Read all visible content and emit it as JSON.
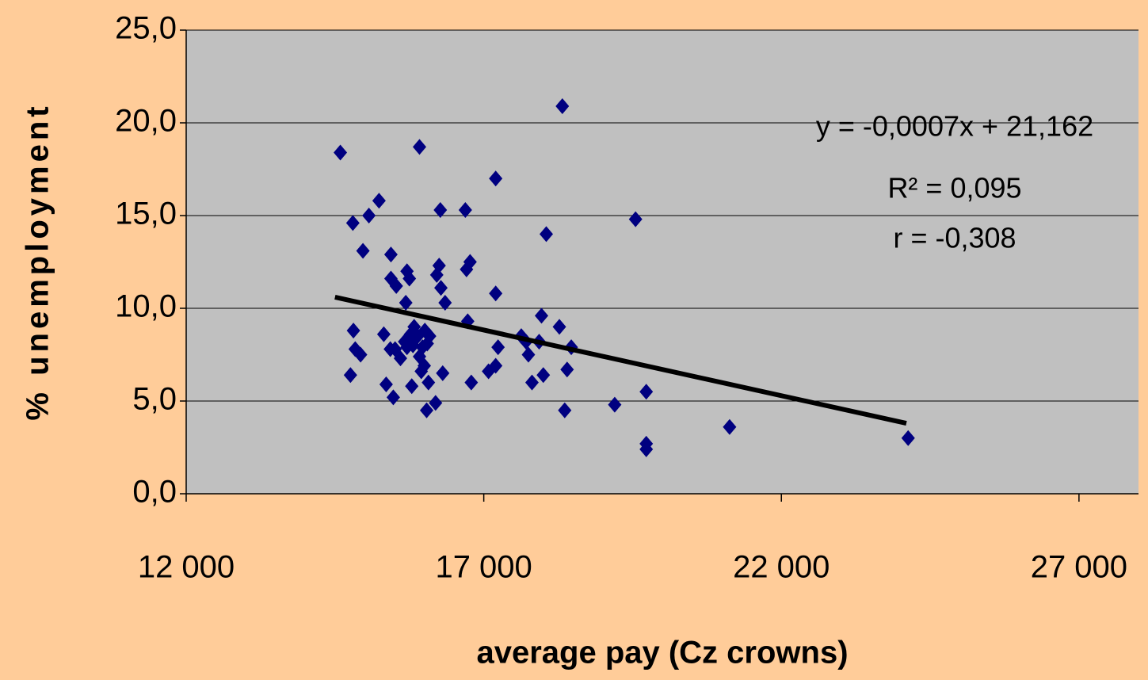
{
  "chart_data": {
    "type": "scatter",
    "xlabel": "average pay (Cz crowns)",
    "ylabel": "% unemployment",
    "background": "#ffcc99",
    "plot_background": "#c0c0c0",
    "grid": true,
    "series": [
      {
        "color": "#000080",
        "x": [
          14590,
          14800,
          15070,
          15240,
          14970,
          14810,
          14840,
          14930,
          14760,
          15320,
          15440,
          15440,
          15530,
          15710,
          15750,
          15690,
          15920,
          16270,
          16250,
          16210,
          16280,
          16350,
          16690,
          16710,
          16770,
          16730,
          17200,
          17200,
          18320,
          18050,
          19550,
          17970,
          18270,
          17630,
          17710,
          17930,
          18470,
          17240,
          17750,
          17200,
          17080,
          18400,
          18000,
          17810,
          16790,
          16310,
          16070,
          15950,
          15790,
          15360,
          15480,
          16040,
          16190,
          18360,
          19200,
          19730,
          19730,
          19730,
          21130,
          24130,
          15510,
          15600,
          15670,
          15770,
          15830,
          15890,
          15970,
          15920,
          16010,
          16090,
          16050,
          15710,
          15430,
          16000,
          15810
        ],
        "values": [
          18.4,
          14.6,
          15.0,
          15.8,
          13.1,
          8.8,
          7.8,
          7.5,
          6.4,
          8.6,
          12.9,
          11.6,
          11.2,
          12.0,
          11.6,
          10.3,
          18.7,
          15.3,
          12.3,
          11.8,
          11.1,
          10.3,
          15.3,
          12.1,
          12.5,
          9.3,
          17.0,
          10.8,
          20.9,
          14.0,
          14.8,
          9.6,
          9.0,
          8.5,
          8.2,
          8.2,
          7.9,
          7.9,
          7.5,
          6.9,
          6.6,
          6.7,
          6.4,
          6.0,
          6.0,
          6.5,
          6.0,
          6.6,
          5.8,
          5.9,
          5.2,
          4.5,
          4.9,
          4.5,
          4.8,
          5.5,
          2.7,
          2.4,
          3.6,
          3.0,
          7.8,
          7.3,
          8.2,
          8.6,
          9.0,
          8.5,
          7.9,
          7.4,
          8.8,
          8.5,
          8.1,
          7.9,
          7.8,
          6.9,
          8.0
        ]
      }
    ],
    "trendline": {
      "color": "#000000",
      "x": [
        14500,
        24100
      ],
      "y": [
        10.6,
        3.8
      ]
    },
    "annotations": [
      "y = -0,0007x + 21,162",
      "R² = 0,095",
      "r = -0,308"
    ],
    "xlim": [
      12000,
      28000
    ],
    "xticks": [
      {
        "value": 12000,
        "label": "12 000"
      },
      {
        "value": 17000,
        "label": "17 000"
      },
      {
        "value": 22000,
        "label": "22 000"
      },
      {
        "value": 27000,
        "label": "27 000"
      }
    ],
    "ylim": [
      0,
      25
    ],
    "yticks": [
      {
        "value": 0,
        "label": "0,0"
      },
      {
        "value": 5,
        "label": "5,0"
      },
      {
        "value": 10,
        "label": "10,0"
      },
      {
        "value": 15,
        "label": "15,0"
      },
      {
        "value": 20,
        "label": "20,0"
      },
      {
        "value": 25,
        "label": "25,0"
      }
    ]
  }
}
